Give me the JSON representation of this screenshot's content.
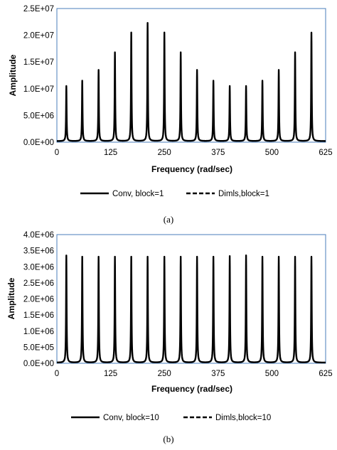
{
  "chart_data": [
    {
      "type": "line",
      "panel_label": "(a)",
      "xlabel": "Frequency (rad/sec)",
      "ylabel": "Amplitude",
      "xlim": [
        0,
        625
      ],
      "ylim": [
        0,
        25000000
      ],
      "x_ticks": [
        "0",
        "125",
        "250",
        "375",
        "500",
        "625"
      ],
      "y_ticks": [
        "0.0E+00",
        "5.0E+06",
        "1.0E+07",
        "1.5E+07",
        "2.0E+07",
        "2.5E+07"
      ],
      "grid": false,
      "legend_position": "bottom",
      "peaks": {
        "x": [
          22,
          59,
          97,
          135,
          173,
          211,
          250,
          288,
          326,
          364,
          402,
          440,
          478,
          516,
          554,
          592
        ],
        "y": [
          10500000,
          11500000,
          13500000,
          16800000,
          20500000,
          22300000,
          20500000,
          16800000,
          13500000,
          11500000,
          10500000,
          10500000,
          11500000,
          13500000,
          16800000,
          20500000
        ]
      },
      "trough_value": 200000,
      "series": [
        {
          "name": "Conv, block=1",
          "style": "solid",
          "color": "#000000"
        },
        {
          "name": "Dimls,block=1",
          "style": "dashed",
          "color": "#000000"
        }
      ]
    },
    {
      "type": "line",
      "panel_label": "(b)",
      "xlabel": "Frequency (rad/sec)",
      "ylabel": "Amplitude",
      "xlim": [
        0,
        625
      ],
      "ylim": [
        0,
        4000000
      ],
      "x_ticks": [
        "0",
        "125",
        "250",
        "375",
        "500",
        "625"
      ],
      "y_ticks": [
        "0.0E+00",
        "5.0E+05",
        "1.0E+06",
        "1.5E+06",
        "2.0E+06",
        "2.5E+06",
        "3.0E+06",
        "3.5E+06",
        "4.0E+06"
      ],
      "grid": false,
      "legend_position": "bottom",
      "peaks": {
        "x": [
          22,
          59,
          97,
          135,
          173,
          211,
          250,
          288,
          326,
          364,
          402,
          440,
          478,
          516,
          554,
          592
        ],
        "y": [
          3350000,
          3310000,
          3310000,
          3310000,
          3310000,
          3310000,
          3310000,
          3310000,
          3310000,
          3310000,
          3330000,
          3350000,
          3310000,
          3310000,
          3310000,
          3310000
        ]
      },
      "trough_value": 20000,
      "series": [
        {
          "name": "Conv, block=10",
          "style": "solid",
          "color": "#000000"
        },
        {
          "name": "Dimls,block=10",
          "style": "dashed",
          "color": "#000000"
        }
      ]
    }
  ],
  "colors": {
    "plot_border": "#4a7ebb",
    "line": "#000000",
    "background": "#ffffff"
  }
}
